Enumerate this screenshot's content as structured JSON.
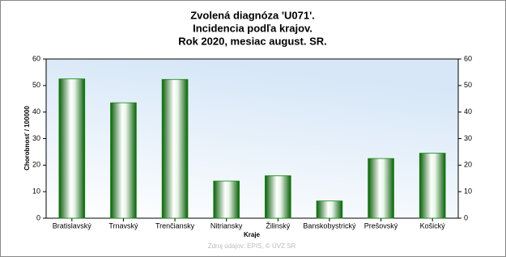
{
  "chart_data": {
    "type": "bar",
    "title": [
      "Zvolená diagnóza 'U071'.",
      "Incidencia podľa krajov.",
      "Rok 2020, mesiac august. SR."
    ],
    "y_label": "Chorobnosť / 100000",
    "x_label": "Kraje",
    "source": "Zdroj údajov: EPIS, © ÚVZ SR",
    "categories": [
      "Bratislavský",
      "Trnavský",
      "Trenčiansky",
      "Nitriansky",
      "Žilinský",
      "Banskobystrický",
      "Prešovský",
      "Košický"
    ],
    "values": [
      52.5,
      43.5,
      52.3,
      14,
      16,
      6.5,
      22.5,
      24.5
    ],
    "color": "#118811",
    "ylim": [
      0,
      60
    ],
    "yticks": [
      0,
      10,
      20,
      30,
      40,
      50,
      60
    ],
    "y2lim": [
      0,
      60
    ],
    "y2ticks": [
      0,
      10,
      20,
      30,
      40,
      50,
      60
    ]
  }
}
